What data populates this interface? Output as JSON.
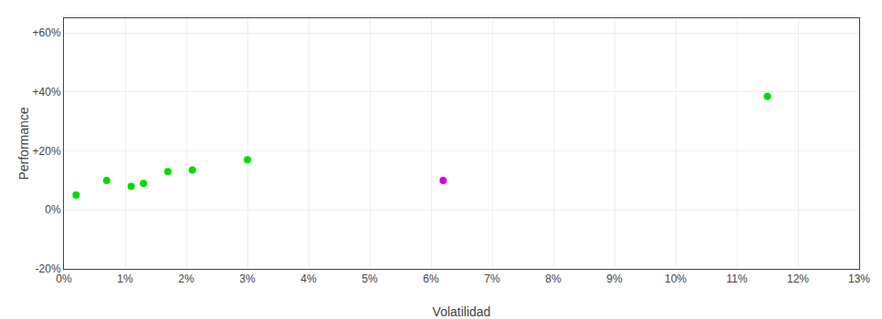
{
  "chart_data": {
    "type": "scatter",
    "xlabel": "Volatilidad",
    "ylabel": "Performance",
    "xlim": [
      0,
      0.13
    ],
    "ylim": [
      -0.2,
      0.65
    ],
    "xticks": [
      {
        "value": 0,
        "label": "0%"
      },
      {
        "value": 0.01,
        "label": "1%"
      },
      {
        "value": 0.02,
        "label": "2%"
      },
      {
        "value": 0.03,
        "label": "3%"
      },
      {
        "value": 0.04,
        "label": "4%"
      },
      {
        "value": 0.05,
        "label": "5%"
      },
      {
        "value": 0.06,
        "label": "6%"
      },
      {
        "value": 0.07,
        "label": "7%"
      },
      {
        "value": 0.08,
        "label": "8%"
      },
      {
        "value": 0.09,
        "label": "9%"
      },
      {
        "value": 0.1,
        "label": "10%"
      },
      {
        "value": 0.11,
        "label": "11%"
      },
      {
        "value": 0.12,
        "label": "12%"
      },
      {
        "value": 0.13,
        "label": "13%"
      }
    ],
    "yticks": [
      {
        "value": -0.2,
        "label": "-20%"
      },
      {
        "value": 0.0,
        "label": "0%"
      },
      {
        "value": 0.2,
        "label": "+20%"
      },
      {
        "value": 0.4,
        "label": "+40%"
      },
      {
        "value": 0.6,
        "label": "+60%"
      }
    ],
    "grid": true,
    "series": [
      {
        "color": "#00dd00",
        "x": [
          0.002,
          0.007,
          0.011,
          0.013,
          0.017,
          0.021,
          0.03,
          0.115
        ],
        "values": [
          0.05,
          0.1,
          0.08,
          0.09,
          0.13,
          0.135,
          0.17,
          0.385
        ]
      },
      {
        "color": "#dd00dd",
        "x": [
          0.062
        ],
        "values": [
          0.1
        ]
      }
    ]
  }
}
